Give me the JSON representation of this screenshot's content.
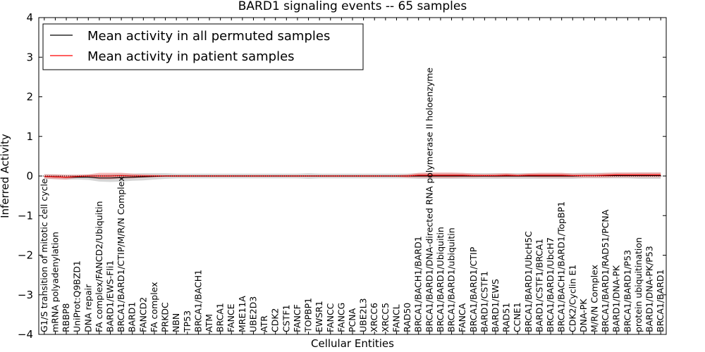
{
  "chart_data": {
    "type": "line",
    "title": "BARD1 signaling events -- 65 samples",
    "xlabel": "Cellular Entities",
    "ylabel": "Inferred Activity",
    "ylim": [
      -4,
      4
    ],
    "yticks": [
      {
        "value": 4,
        "label": "4"
      },
      {
        "value": 3,
        "label": "3"
      },
      {
        "value": 2,
        "label": "2"
      },
      {
        "value": 1,
        "label": "1"
      },
      {
        "value": 0,
        "label": "0"
      },
      {
        "value": -1,
        "label": "−1"
      },
      {
        "value": -2,
        "label": "−2"
      },
      {
        "value": -3,
        "label": "−3"
      },
      {
        "value": -4,
        "label": "−4"
      }
    ],
    "grid": false,
    "legend_position": "top-left",
    "categories": [
      "G1/S transition of mitotic cell cycle",
      "mRNA polyadenylation",
      "RBBP8",
      "UniProt:Q9BZD1",
      "DNA repair",
      "FA complex/FANCD2/Ubiquitin",
      "BARD1/EWS-Fli1",
      "BRCA1/BARD1/CTIP/M/R/N Complex",
      "BARD1",
      "FANCD2",
      "FA complex",
      "PRKDC",
      "NBN",
      "TP53",
      "BRCA1/BACH1",
      "ATM",
      "BRCA1",
      "FANCE",
      "MRE11A",
      "UBE2D3",
      "ATR",
      "CDK2",
      "CSTF1",
      "FANCF",
      "TOPBP1",
      "EWSR1",
      "FANCC",
      "FANCG",
      "PCNA",
      "UBE2L3",
      "XRCC6",
      "XRCC5",
      "FANCL",
      "RAD50",
      "BRCA1/BACH1/BARD1",
      "BRCA1/BARD1/DNA-directed RNA polymerase II holoenzyme",
      "BRCA1/BARD1/Ubiquitin",
      "BRCA1/BARD1/ubiquitin",
      "FANCA",
      "BRCA1/BARD1/CTIP",
      "BARD1/CSTF1",
      "BARD1/EWS",
      "RAD51",
      "CCNE1",
      "BRCA1/BARD1/UbcH5C",
      "BARD1/CSTF1/BRCA1",
      "BRCA1/BARD1/UbcH7",
      "BRCA1/BACH1/BARD1/TopBP1",
      "CDK2/Cyclin E1",
      "DNA-PK",
      "M/R/N Complex",
      "BRCA1/BARD1/RAD51/PCNA",
      "BARD1/DNA-PK",
      "BRCA1/BARD1/P53",
      "protein ubiquitination",
      "BARD1/DNA-PK/P53",
      "BRCA1/BARD1"
    ],
    "series": [
      {
        "name": "Mean activity in all permuted samples",
        "color": "#000000",
        "values": [
          -0.01,
          -0.02,
          -0.03,
          -0.03,
          -0.03,
          -0.05,
          -0.05,
          -0.04,
          -0.03,
          -0.02,
          -0.01,
          0.0,
          0.0,
          0.0,
          0.0,
          0.0,
          0.0,
          0.0,
          0.0,
          0.0,
          0.0,
          0.0,
          0.0,
          0.0,
          0.0,
          0.0,
          0.0,
          0.0,
          0.0,
          0.0,
          0.0,
          0.0,
          0.0,
          0.0,
          0.0,
          0.0,
          0.0,
          0.0,
          0.0,
          0.0,
          0.0,
          0.0,
          0.0,
          0.0,
          0.0,
          0.0,
          0.0,
          0.0,
          0.0,
          0.01,
          0.01,
          0.01,
          0.01,
          0.01,
          0.01,
          0.01,
          0.01
        ],
        "band": {
          "color": "#bbbbbb",
          "halfwidth": [
            0.06,
            0.06,
            0.06,
            0.06,
            0.07,
            0.09,
            0.1,
            0.1,
            0.09,
            0.09,
            0.08,
            0.07,
            0.06,
            0.06,
            0.06,
            0.06,
            0.06,
            0.06,
            0.06,
            0.06,
            0.06,
            0.06,
            0.06,
            0.06,
            0.07,
            0.06,
            0.06,
            0.06,
            0.06,
            0.06,
            0.06,
            0.06,
            0.06,
            0.06,
            0.07,
            0.07,
            0.07,
            0.07,
            0.07,
            0.07,
            0.07,
            0.07,
            0.07,
            0.07,
            0.07,
            0.07,
            0.07,
            0.07,
            0.07,
            0.07,
            0.07,
            0.07,
            0.07,
            0.07,
            0.08,
            0.08,
            0.08
          ]
        }
      },
      {
        "name": "Mean activity in patient samples",
        "color": "#ff0000",
        "values": [
          -0.01,
          -0.02,
          -0.03,
          -0.01,
          0.0,
          0.0,
          0.0,
          0.01,
          0.0,
          0.0,
          0.0,
          0.0,
          0.0,
          0.0,
          0.0,
          0.0,
          0.0,
          0.0,
          0.0,
          0.0,
          0.0,
          0.0,
          0.0,
          0.0,
          0.0,
          0.0,
          0.0,
          0.0,
          0.0,
          0.0,
          0.0,
          0.0,
          0.0,
          0.0,
          0.02,
          0.02,
          0.02,
          0.02,
          0.02,
          0.01,
          0.01,
          0.01,
          0.02,
          0.01,
          0.02,
          0.02,
          0.02,
          0.02,
          0.01,
          0.01,
          0.01,
          0.02,
          0.03,
          0.03,
          0.03,
          0.03,
          0.03
        ],
        "band": {
          "color": "#f08080",
          "halfwidth": [
            0.05,
            0.06,
            0.06,
            0.04,
            0.04,
            0.08,
            0.08,
            0.07,
            0.06,
            0.04,
            0.03,
            0.02,
            0.02,
            0.02,
            0.02,
            0.02,
            0.02,
            0.02,
            0.02,
            0.02,
            0.02,
            0.02,
            0.02,
            0.02,
            0.02,
            0.02,
            0.02,
            0.02,
            0.02,
            0.02,
            0.02,
            0.02,
            0.02,
            0.04,
            0.06,
            0.07,
            0.07,
            0.07,
            0.06,
            0.05,
            0.04,
            0.05,
            0.05,
            0.04,
            0.05,
            0.06,
            0.06,
            0.06,
            0.05,
            0.05,
            0.05,
            0.06,
            0.06,
            0.06,
            0.06,
            0.06,
            0.06
          ]
        }
      }
    ]
  }
}
